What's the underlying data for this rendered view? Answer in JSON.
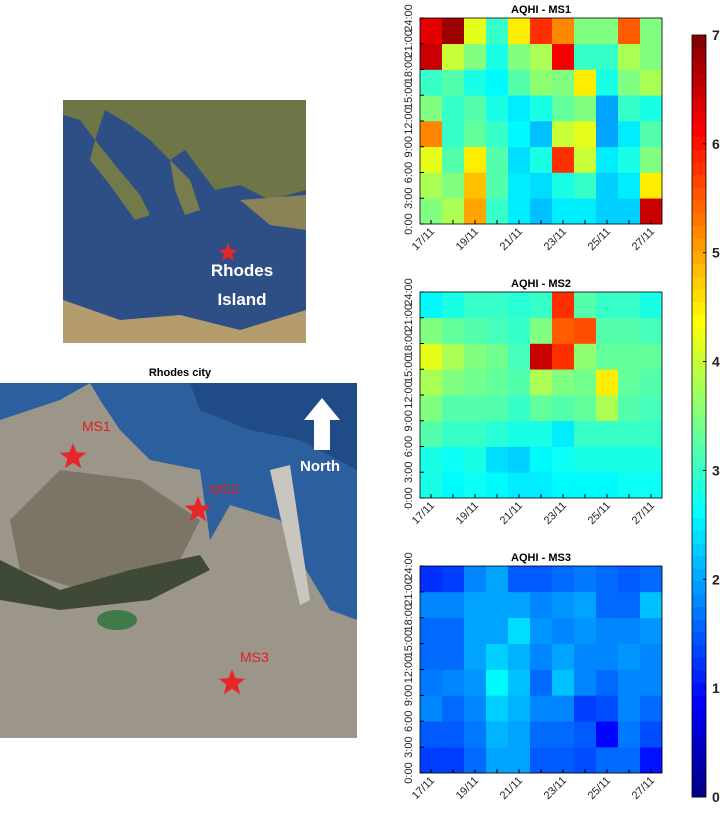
{
  "maps": {
    "inset": {
      "label_line1": "Rhodes",
      "label_line2": "Island"
    },
    "city": {
      "title": "Rhodes city",
      "north": "North",
      "stations": [
        "MS1",
        "MS2",
        "MS3"
      ]
    }
  },
  "colorbar": {
    "zlim": [
      0,
      7
    ],
    "zticks": [
      0,
      1,
      2,
      3,
      4,
      5,
      6,
      7
    ],
    "colormap": "jet"
  },
  "chart_data": [
    {
      "type": "heatmap",
      "title": "AQHI - MS1",
      "categories": [
        "17/11",
        null,
        "19/11",
        null,
        "21/11",
        null,
        "23/11",
        null,
        "25/11",
        null,
        "27/11"
      ],
      "ylim": [
        0,
        24
      ],
      "yticks": [
        {
          "value": 0,
          "label": "0:00"
        },
        {
          "value": 3,
          "label": "3:00"
        },
        {
          "value": 6,
          "label": "6:00"
        },
        {
          "value": 9,
          "label": "9:00"
        },
        {
          "value": 12,
          "label": "12:00"
        },
        {
          "value": 15,
          "label": "15:00"
        },
        {
          "value": 18,
          "label": "18:00"
        },
        {
          "value": 21,
          "label": "21:00"
        },
        {
          "value": 24,
          "label": "24:00"
        }
      ],
      "values": [
        [
          3.5,
          3.8,
          4.2,
          5.2,
          3.5,
          3.0,
          6.5,
          6.3
        ],
        [
          3.8,
          3.5,
          3.2,
          3.0,
          3.0,
          3.2,
          4.0,
          6.8
        ],
        [
          5,
          4.8,
          4.5,
          3.3,
          3.2,
          2.8,
          3.5,
          4.2
        ],
        [
          3,
          3.2,
          3.2,
          3,
          2.8,
          2.6,
          2.8,
          3
        ],
        [
          2.5,
          2.5,
          2.4,
          2.6,
          2.5,
          3.2,
          3.5,
          4.5
        ],
        [
          2.2,
          2.4,
          2.8,
          2.2,
          2.8,
          3.6,
          3.8,
          5.8
        ],
        [
          2.5,
          2.8,
          5.8,
          4,
          3.3,
          3.5,
          6.2,
          5.2
        ],
        [
          2.5,
          3,
          4,
          4.2,
          3.5,
          4.5,
          3,
          3.5
        ],
        [
          2.3,
          2.3,
          2.5,
          2,
          2,
          2.8,
          3,
          3.5
        ],
        [
          2.3,
          2.5,
          2.8,
          2.5,
          3,
          3.5,
          3.8,
          5.5
        ],
        [
          6.5,
          4.5,
          3.5,
          3.2,
          2.8,
          3.8,
          3.5,
          3.5
        ]
      ]
    },
    {
      "type": "heatmap",
      "title": "AQHI - MS2",
      "categories": [
        "17/11",
        null,
        "19/11",
        null,
        "21/11",
        null,
        "23/11",
        null,
        "25/11",
        null,
        "27/11"
      ],
      "ylim": [
        0,
        24
      ],
      "yticks": [
        {
          "value": 0,
          "label": "0:00"
        },
        {
          "value": 3,
          "label": "3:00"
        },
        {
          "value": 6,
          "label": "6:00"
        },
        {
          "value": 9,
          "label": "9:00"
        },
        {
          "value": 12,
          "label": "12:00"
        },
        {
          "value": 15,
          "label": "15:00"
        },
        {
          "value": 18,
          "label": "18:00"
        },
        {
          "value": 21,
          "label": "21:00"
        },
        {
          "value": 24,
          "label": "24:00"
        }
      ],
      "values": [
        [
          2.8,
          2.8,
          3.2,
          3.5,
          3.8,
          4.2,
          3.5,
          2.6
        ],
        [
          2.6,
          2.7,
          3,
          3.2,
          3.5,
          3.8,
          3.3,
          2.8
        ],
        [
          2.7,
          2.8,
          3,
          3.2,
          3.4,
          3.5,
          3.2,
          3
        ],
        [
          2.6,
          2.4,
          2.9,
          3.2,
          3.3,
          3.4,
          3.1,
          3
        ],
        [
          2.5,
          2.3,
          2.8,
          3,
          3.2,
          3.1,
          3,
          2.9
        ],
        [
          2.5,
          2.6,
          2.8,
          3.3,
          3.8,
          6.5,
          3.5,
          3
        ],
        [
          2.6,
          2.7,
          2.5,
          3.2,
          3.5,
          5.8,
          5.5,
          5.8
        ],
        [
          2.6,
          2.8,
          3,
          3.3,
          3.4,
          3.6,
          5.6,
          3.2
        ],
        [
          2.6,
          2.8,
          3,
          3.8,
          4.5,
          3.3,
          3.2,
          3
        ],
        [
          2.7,
          2.8,
          3,
          3.2,
          3.3,
          3.3,
          3.2,
          3
        ],
        [
          2.7,
          2.8,
          3,
          3.1,
          3.2,
          3.3,
          3.1,
          2.8
        ]
      ]
    },
    {
      "type": "heatmap",
      "title": "AQHI - MS3",
      "categories": [
        "17/11",
        null,
        "19/11",
        null,
        "21/11",
        null,
        "23/11",
        null,
        "25/11",
        null,
        "27/11"
      ],
      "ylim": [
        0,
        24
      ],
      "yticks": [
        {
          "value": 0,
          "label": "0:00"
        },
        {
          "value": 3,
          "label": "3:00"
        },
        {
          "value": 6,
          "label": "6:00"
        },
        {
          "value": 9,
          "label": "9:00"
        },
        {
          "value": 12,
          "label": "12:00"
        },
        {
          "value": 15,
          "label": "15:00"
        },
        {
          "value": 18,
          "label": "18:00"
        },
        {
          "value": 21,
          "label": "21:00"
        },
        {
          "value": 24,
          "label": "24:00"
        }
      ],
      "values": [
        [
          1.3,
          1.5,
          1.8,
          1.7,
          1.6,
          1.6,
          1.8,
          1.2
        ],
        [
          1.3,
          1.5,
          1.6,
          1.8,
          1.6,
          1.6,
          1.8,
          1.3
        ],
        [
          1.6,
          1.7,
          1.8,
          1.9,
          2,
          2,
          2,
          1.8
        ],
        [
          2,
          2.1,
          2.3,
          2.6,
          2.3,
          2,
          2,
          2
        ],
        [
          2,
          2,
          2.1,
          2.2,
          2.1,
          2.4,
          2,
          1.5
        ],
        [
          1.5,
          1.6,
          1.8,
          1.6,
          1.8,
          1.9,
          1.8,
          1.5
        ],
        [
          1.5,
          1.6,
          1.8,
          2.2,
          2,
          1.8,
          1.9,
          1.6
        ],
        [
          1.4,
          1.5,
          1.3,
          1.8,
          1.8,
          1.9,
          2,
          1.7
        ],
        [
          1.6,
          0.9,
          1.4,
          1.6,
          1.8,
          1.8,
          1.6,
          1.6
        ],
        [
          1.6,
          1.7,
          1.8,
          1.8,
          1.9,
          1.8,
          1.6,
          1.5
        ],
        [
          1,
          1.4,
          1.6,
          1.8,
          1.8,
          1.9,
          2.2,
          1.6
        ]
      ]
    }
  ]
}
